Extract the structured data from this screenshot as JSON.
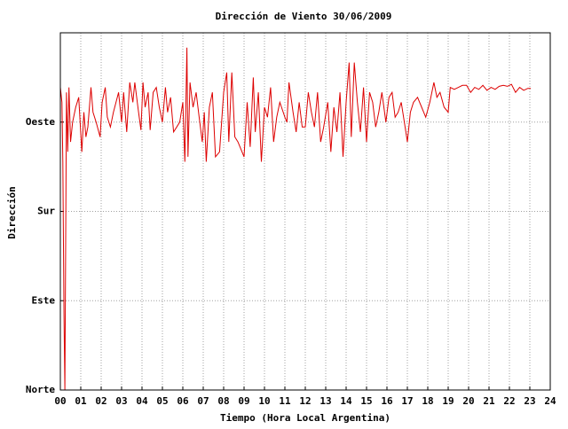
{
  "chart_data": {
    "type": "line",
    "title": "Dirección de Viento 30/06/2009",
    "xlabel": "Tiempo (Hora Local Argentina)",
    "ylabel": "Dirección",
    "color": "#dd0000",
    "grid": true,
    "xlim": [
      0,
      24
    ],
    "xticks": [
      {
        "value": 0,
        "label": "00"
      },
      {
        "value": 1,
        "label": "01"
      },
      {
        "value": 2,
        "label": "02"
      },
      {
        "value": 3,
        "label": "03"
      },
      {
        "value": 4,
        "label": "04"
      },
      {
        "value": 5,
        "label": "05"
      },
      {
        "value": 6,
        "label": "06"
      },
      {
        "value": 7,
        "label": "07"
      },
      {
        "value": 8,
        "label": "08"
      },
      {
        "value": 9,
        "label": "09"
      },
      10,
      11,
      12,
      13,
      14,
      15,
      16,
      17,
      18,
      19,
      20,
      21,
      22,
      23,
      24
    ],
    "ylim": [
      0,
      360
    ],
    "yticks": [
      {
        "value": 0,
        "label": "Norte"
      },
      {
        "value": 90,
        "label": "Este"
      },
      {
        "value": 180,
        "label": "Sur"
      },
      {
        "value": 270,
        "label": "Oeste"
      }
    ],
    "x": [
      0.0,
      0.08,
      0.12,
      0.18,
      0.22,
      0.26,
      0.3,
      0.36,
      0.42,
      0.5,
      0.6,
      0.75,
      0.9,
      1.05,
      1.15,
      1.25,
      1.35,
      1.5,
      1.6,
      1.75,
      1.95,
      2.05,
      2.2,
      2.3,
      2.45,
      2.6,
      2.85,
      3.0,
      3.1,
      3.25,
      3.4,
      3.55,
      3.65,
      3.8,
      3.95,
      4.05,
      4.15,
      4.3,
      4.4,
      4.55,
      4.7,
      4.85,
      5.0,
      5.15,
      5.25,
      5.4,
      5.55,
      5.7,
      5.85,
      6.0,
      6.1,
      6.2,
      6.25,
      6.35,
      6.5,
      6.65,
      6.8,
      6.95,
      7.05,
      7.15,
      7.3,
      7.45,
      7.6,
      7.8,
      8.0,
      8.15,
      8.25,
      8.4,
      8.55,
      8.7,
      9.0,
      9.15,
      9.3,
      9.45,
      9.55,
      9.7,
      9.85,
      10.0,
      10.15,
      10.3,
      10.45,
      10.6,
      10.75,
      11.0,
      11.1,
      11.2,
      11.4,
      11.55,
      11.7,
      11.85,
      12.0,
      12.15,
      12.3,
      12.45,
      12.6,
      12.75,
      12.9,
      13.1,
      13.25,
      13.4,
      13.55,
      13.7,
      13.85,
      14.0,
      14.15,
      14.25,
      14.4,
      14.55,
      14.7,
      14.85,
      15.0,
      15.15,
      15.3,
      15.45,
      15.6,
      15.75,
      15.95,
      16.1,
      16.25,
      16.4,
      16.55,
      16.7,
      16.85,
      17.0,
      17.15,
      17.3,
      17.5,
      17.7,
      17.9,
      18.1,
      18.3,
      18.45,
      18.6,
      18.8,
      19.0,
      19.1,
      19.3,
      19.5,
      19.7,
      19.9,
      20.1,
      20.3,
      20.5,
      20.7,
      20.9,
      21.1,
      21.3,
      21.5,
      21.7,
      21.9,
      22.1,
      22.3,
      22.5,
      22.7,
      22.9,
      23.05
    ],
    "values": [
      305,
      290,
      230,
      75,
      0,
      150,
      300,
      240,
      305,
      250,
      270,
      285,
      295,
      240,
      280,
      255,
      265,
      305,
      280,
      270,
      255,
      290,
      305,
      275,
      265,
      280,
      300,
      270,
      300,
      260,
      310,
      290,
      310,
      285,
      262,
      310,
      285,
      300,
      262,
      300,
      305,
      285,
      270,
      305,
      280,
      295,
      260,
      265,
      270,
      290,
      230,
      345,
      235,
      310,
      285,
      300,
      275,
      250,
      280,
      230,
      285,
      300,
      235,
      240,
      300,
      320,
      250,
      320,
      255,
      250,
      235,
      290,
      245,
      315,
      260,
      300,
      230,
      285,
      275,
      305,
      250,
      275,
      290,
      275,
      270,
      310,
      280,
      260,
      290,
      265,
      265,
      300,
      280,
      265,
      300,
      250,
      265,
      290,
      240,
      285,
      260,
      300,
      235,
      290,
      330,
      255,
      330,
      290,
      260,
      305,
      250,
      300,
      290,
      265,
      280,
      300,
      270,
      295,
      300,
      275,
      280,
      290,
      270,
      250,
      280,
      290,
      295,
      285,
      275,
      290,
      310,
      295,
      300,
      285,
      280,
      305,
      303,
      305,
      307,
      307,
      300,
      305,
      303,
      307,
      302,
      305,
      303,
      306,
      307,
      306,
      308,
      300,
      305,
      302,
      304,
      304
    ]
  }
}
